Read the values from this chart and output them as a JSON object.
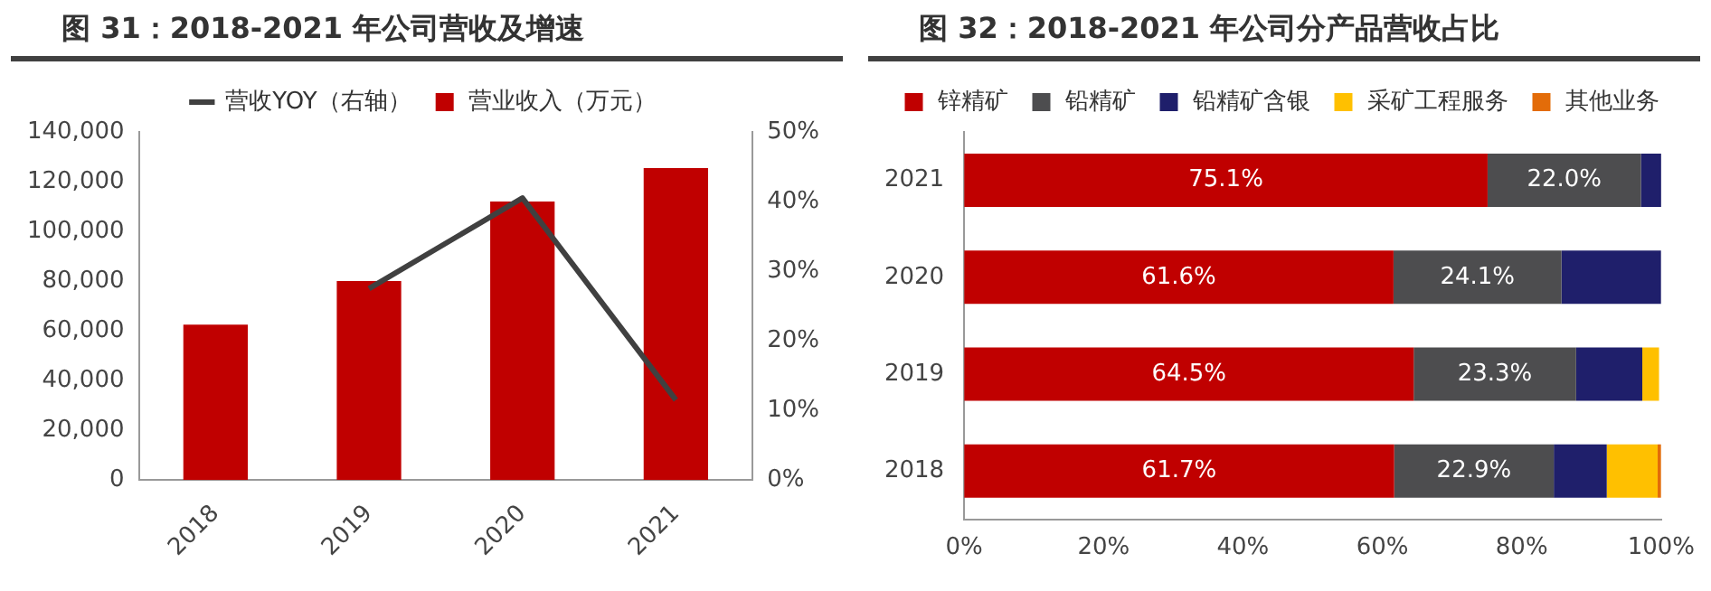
{
  "chart_data": [
    {
      "type": "bar",
      "title": "图 31：2018-2021 年公司营收及增速",
      "categories": [
        "2018",
        "2019",
        "2020",
        "2021"
      ],
      "series": [
        {
          "name": "营业收入（万元）",
          "color": "#c00000",
          "values": [
            62500,
            80000,
            112000,
            125500
          ]
        },
        {
          "name": "营收YOY（右轴）",
          "type": "line",
          "axis": "y2",
          "color": "#404040",
          "values": [
            null,
            27.5,
            40.5,
            11.5
          ]
        }
      ],
      "ylim": [
        0,
        140000
      ],
      "yticks": [
        {
          "value": 0,
          "label": "0"
        },
        {
          "value": 20000,
          "label": "20,000"
        },
        {
          "value": 40000,
          "label": "40,000"
        },
        {
          "value": 60000,
          "label": "60,000"
        },
        {
          "value": 80000,
          "label": "80,000"
        },
        {
          "value": 100000,
          "label": "100,000"
        },
        {
          "value": 120000,
          "label": "120,000"
        },
        {
          "value": 140000,
          "label": "140,000"
        }
      ],
      "y2lim": [
        0,
        50
      ],
      "y2ticks": [
        {
          "value": 0,
          "label": "0%"
        },
        {
          "value": 10,
          "label": "10%"
        },
        {
          "value": 20,
          "label": "20%"
        },
        {
          "value": 30,
          "label": "30%"
        },
        {
          "value": 40,
          "label": "40%"
        },
        {
          "value": 50,
          "label": "50%"
        }
      ],
      "legend": "top",
      "marker": "none"
    },
    {
      "type": "bar",
      "title": "图 32：2018-2021 年公司分产品营收占比",
      "orientation": "horizontal",
      "stacked": true,
      "categories": [
        "2021",
        "2020",
        "2019",
        "2018"
      ],
      "series": [
        {
          "name": "锌精矿",
          "color": "#c00000",
          "values": [
            75.1,
            61.6,
            64.5,
            61.7
          ],
          "value_labels": [
            "75.1%",
            "61.6%",
            "64.5%",
            "61.7%"
          ]
        },
        {
          "name": "铅精矿",
          "color": "#4d4d4f",
          "values": [
            22.0,
            24.1,
            23.3,
            22.9
          ],
          "value_labels": [
            "22.0%",
            "24.1%",
            "23.3%",
            "22.9%"
          ]
        },
        {
          "name": "铅精矿含银",
          "color": "#1f1f6b",
          "values": [
            3.3,
            14.3,
            9.5,
            7.6
          ]
        },
        {
          "name": "采矿工程服务",
          "color": "#ffc000",
          "values": [
            0,
            0,
            2.4,
            7.3
          ]
        },
        {
          "name": "其他业务",
          "color": "#e36c09",
          "values": [
            0,
            0,
            0,
            0.5
          ]
        }
      ],
      "xlim": [
        0,
        100
      ],
      "xticks": [
        {
          "value": 0,
          "label": "0%"
        },
        {
          "value": 20,
          "label": "20%"
        },
        {
          "value": 40,
          "label": "40%"
        },
        {
          "value": 60,
          "label": "60%"
        },
        {
          "value": 80,
          "label": "80%"
        },
        {
          "value": 100,
          "label": "100%"
        }
      ],
      "legend": "top"
    }
  ]
}
